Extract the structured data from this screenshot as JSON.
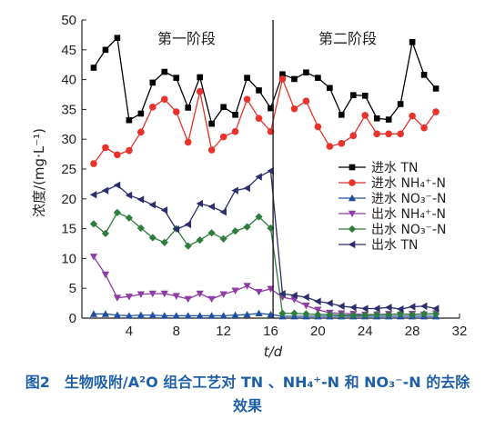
{
  "chart_data": {
    "type": "line",
    "xlabel": "t/d",
    "ylabel": "浓度/(mg·L⁻¹)",
    "xlim": [
      0,
      32
    ],
    "ylim": [
      0,
      50
    ],
    "xticks": [
      4,
      8,
      12,
      16,
      20,
      24,
      28,
      32
    ],
    "yticks": [
      0,
      5,
      10,
      15,
      20,
      25,
      30,
      35,
      40,
      45,
      50
    ],
    "stage_divider_x": 16.2,
    "stages": [
      "第一阶段",
      "第二阶段"
    ],
    "legend_position": "right-middle",
    "series": [
      {
        "name": "进水 TN",
        "color": "#000000",
        "marker": "square",
        "x": [
          1,
          2,
          3,
          4,
          5,
          6,
          7,
          8,
          9,
          10,
          11,
          12,
          13,
          14,
          15,
          16,
          17,
          18,
          19,
          20,
          21,
          22,
          23,
          24,
          25,
          26,
          27,
          28,
          29,
          30
        ],
        "y": [
          42,
          45,
          47,
          33.2,
          34.3,
          39.5,
          41.3,
          40.3,
          35.3,
          40.4,
          32.6,
          35.4,
          34.1,
          40.3,
          38.2,
          35.2,
          40.9,
          40.1,
          41.2,
          40.3,
          38.6,
          34.1,
          37.4,
          37.3,
          33.5,
          33.3,
          35.9,
          46.3,
          40.8,
          38.5
        ]
      },
      {
        "name": "进水 NH₄⁺-N",
        "color": "#e8322b",
        "marker": "circle",
        "x": [
          1,
          2,
          3,
          4,
          5,
          6,
          7,
          8,
          9,
          10,
          11,
          12,
          13,
          14,
          15,
          16,
          17,
          18,
          19,
          20,
          21,
          22,
          23,
          24,
          25,
          26,
          27,
          28,
          29,
          30
        ],
        "y": [
          25.9,
          28.6,
          27.4,
          28.1,
          31.2,
          35.4,
          36.7,
          34.6,
          29.5,
          38,
          28.2,
          30.4,
          31.3,
          36.7,
          33.5,
          31.3,
          40.1,
          35.1,
          36.4,
          32.1,
          28.8,
          29.3,
          30.6,
          34,
          30.9,
          30.9,
          30.9,
          33.9,
          31.9,
          34.6
        ]
      },
      {
        "name": "进水 NO₃⁻-N",
        "color": "#1f4fa0",
        "marker": "triangle-up",
        "x": [
          1,
          2,
          3,
          4,
          5,
          6,
          7,
          8,
          9,
          10,
          11,
          12,
          13,
          14,
          15,
          16,
          17,
          18,
          19,
          20,
          21,
          22,
          23,
          24,
          25,
          26,
          27,
          28,
          29,
          30
        ],
        "y": [
          0.7,
          0.7,
          0.5,
          0.4,
          0.5,
          0.5,
          0.4,
          0.4,
          0.4,
          0.4,
          0.4,
          0.4,
          0.5,
          0.6,
          0.8,
          0.6,
          0.3,
          0.3,
          0.3,
          0.3,
          0.3,
          0.3,
          0.3,
          0.3,
          0.3,
          0.3,
          0.3,
          0.3,
          0.3,
          0.3
        ]
      },
      {
        "name": "出水 NH₄⁺-N",
        "color": "#8e3da5",
        "marker": "triangle-down",
        "x": [
          1,
          2,
          3,
          4,
          5,
          6,
          7,
          8,
          9,
          10,
          11,
          12,
          13,
          14,
          15,
          16,
          17,
          18,
          19,
          20,
          21,
          22,
          23,
          24,
          25,
          26,
          27,
          28,
          29,
          30
        ],
        "y": [
          10.3,
          7.3,
          3.4,
          3.6,
          4,
          4.1,
          4.1,
          3.7,
          3.2,
          4.1,
          3.2,
          4,
          4.6,
          5.4,
          4.4,
          4.9,
          3.5,
          3.1,
          2.1,
          1.4,
          0.9,
          0.8,
          0.7,
          0.6,
          0.6,
          0.7,
          0.6,
          0.7,
          0.6,
          0.8
        ]
      },
      {
        "name": "出水 NO₃⁻-N",
        "color": "#2e7d3c",
        "marker": "diamond",
        "x": [
          1,
          2,
          3,
          4,
          5,
          6,
          7,
          8,
          9,
          10,
          11,
          12,
          13,
          14,
          15,
          16,
          17,
          18,
          19,
          20,
          21,
          22,
          23,
          24,
          25,
          26,
          27,
          28,
          29,
          30
        ],
        "y": [
          15.8,
          14.2,
          17.7,
          16.8,
          15.1,
          13.5,
          12.7,
          15,
          12.1,
          13.1,
          14.3,
          13.3,
          14.6,
          15.3,
          17,
          15.1,
          0.8,
          0.8,
          0.7,
          0.6,
          0.6,
          0.5,
          0.5,
          0.5,
          0.6,
          0.6,
          0.7,
          0.6,
          0.7,
          0.7
        ]
      },
      {
        "name": "出水 TN",
        "color": "#2c2e6b",
        "marker": "triangle-left",
        "x": [
          1,
          2,
          3,
          4,
          5,
          6,
          7,
          8,
          9,
          10,
          11,
          12,
          13,
          14,
          15,
          16,
          17,
          18,
          19,
          20,
          21,
          22,
          23,
          24,
          25,
          26,
          27,
          28,
          29,
          30
        ],
        "y": [
          20.7,
          21.4,
          22.3,
          20.6,
          19.9,
          19,
          18.1,
          14.9,
          15.7,
          19.2,
          18.7,
          17.8,
          21.4,
          21.8,
          23.7,
          24.7,
          4.1,
          3.8,
          3.5,
          2.8,
          2.5,
          2,
          1.8,
          1.6,
          1.6,
          1.8,
          1.5,
          1.9,
          2,
          1.6
        ]
      }
    ]
  },
  "caption": {
    "line1": "图2　生物吸附/A²O 组合工艺对 TN 、NH₄⁺-N 和 NO₃⁻-N 的去除",
    "line2": "效果"
  }
}
